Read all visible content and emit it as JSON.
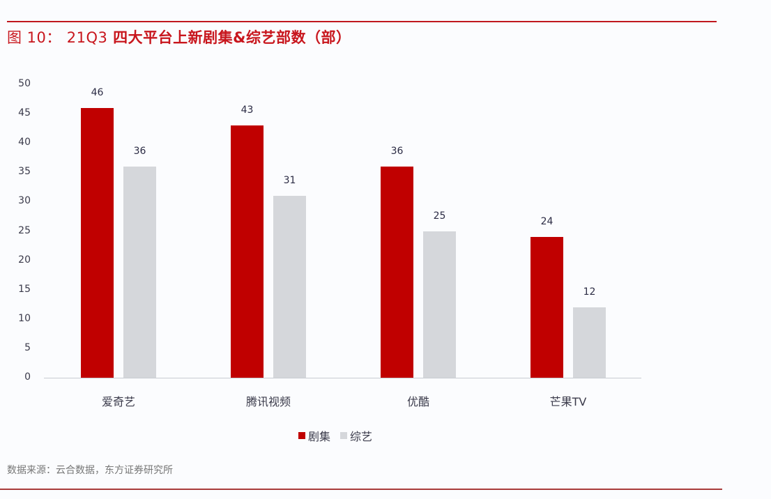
{
  "header": {
    "figure_label": "图 10：",
    "title_num": "21Q3",
    "title_text": "四大平台上新剧集&综艺部数（部）"
  },
  "colors": {
    "accent": "#c8161d",
    "series1": "#c00000",
    "series2": "#d5d7db"
  },
  "legend": [
    {
      "label": "剧集",
      "color": "#c00000"
    },
    {
      "label": "综艺",
      "color": "#d5d7db"
    }
  ],
  "source": "数据来源：云合数据，东方证券研究所",
  "chart_data": {
    "type": "bar",
    "title": "图 10：21Q3 四大平台上新剧集&综艺部数（部）",
    "categories": [
      "爱奇艺",
      "腾讯视频",
      "优酷",
      "芒果TV"
    ],
    "series": [
      {
        "name": "剧集",
        "values": [
          46,
          43,
          36,
          24
        ]
      },
      {
        "name": "综艺",
        "values": [
          36,
          31,
          25,
          12
        ]
      }
    ],
    "xlabel": "",
    "ylabel": "",
    "ylim": [
      0,
      50
    ],
    "yticks": [
      "0",
      "5",
      "10",
      "15",
      "20",
      "25",
      "30",
      "35",
      "40",
      "45",
      "50"
    ],
    "grid": false,
    "legend_position": "bottom",
    "data_labels": true
  }
}
